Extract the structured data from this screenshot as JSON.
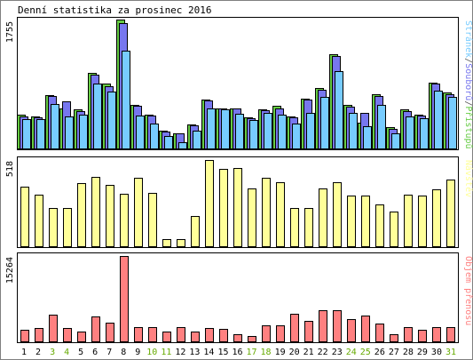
{
  "title": "Denní statistika za prosinec 2016",
  "colors": {
    "border": "#000000",
    "background": "#ffffff",
    "access": "#66cc44",
    "files": "#7777ee",
    "pages": "#77ccff",
    "visits": "#ffff99",
    "traffic": "#ff8080",
    "weekend_label": "#66aa00",
    "weekday_label": "#000000"
  },
  "chart_data": [
    {
      "type": "bar",
      "panel": "hits",
      "ymax_label": "1755",
      "ylim": [
        0,
        1755
      ],
      "side_label": [
        "Stránek",
        "/",
        "Souborů",
        "/",
        "Přístupů"
      ],
      "categories": [
        "1",
        "2",
        "3",
        "4",
        "5",
        "6",
        "7",
        "8",
        "9",
        "10",
        "11",
        "12",
        "13",
        "14",
        "15",
        "16",
        "17",
        "18",
        "19",
        "20",
        "21",
        "22",
        "23",
        "24",
        "25",
        "26",
        "27",
        "28",
        "29",
        "30",
        "31"
      ],
      "weekend_days": [
        "3",
        "4",
        "10",
        "11",
        "17",
        "18",
        "24",
        "25",
        "31"
      ],
      "series": [
        {
          "name": "Přístupů",
          "key": "access",
          "values": [
            460,
            440,
            730,
            550,
            530,
            1025,
            880,
            1755,
            590,
            460,
            240,
            210,
            330,
            670,
            550,
            550,
            420,
            530,
            580,
            430,
            680,
            820,
            1280,
            590,
            350,
            740,
            290,
            530,
            460,
            900,
            760
          ]
        },
        {
          "name": "Souborů",
          "key": "files",
          "values": [
            440,
            420,
            710,
            640,
            510,
            1000,
            850,
            1710,
            580,
            450,
            230,
            200,
            310,
            650,
            540,
            540,
            410,
            520,
            550,
            420,
            660,
            800,
            1260,
            570,
            480,
            720,
            270,
            510,
            450,
            880,
            740
          ]
        },
        {
          "name": "Stránek",
          "key": "pages",
          "values": [
            400,
            400,
            600,
            440,
            460,
            880,
            780,
            1330,
            450,
            340,
            170,
            80,
            240,
            540,
            530,
            470,
            390,
            490,
            460,
            340,
            490,
            700,
            1050,
            480,
            300,
            590,
            210,
            430,
            410,
            790,
            700
          ]
        }
      ]
    },
    {
      "type": "bar",
      "panel": "visits",
      "ymax_label": "518",
      "ylim": [
        0,
        518
      ],
      "side_label": [
        "Návštěv"
      ],
      "categories": [
        "1",
        "2",
        "3",
        "4",
        "5",
        "6",
        "7",
        "8",
        "9",
        "10",
        "11",
        "12",
        "13",
        "14",
        "15",
        "16",
        "17",
        "18",
        "19",
        "20",
        "21",
        "22",
        "23",
        "24",
        "25",
        "26",
        "27",
        "28",
        "29",
        "30",
        "31"
      ],
      "series": [
        {
          "name": "Návštěv",
          "key": "visits",
          "values": [
            360,
            312,
            228,
            228,
            378,
            418,
            366,
            316,
            412,
            322,
            45,
            45,
            180,
            518,
            466,
            468,
            346,
            412,
            386,
            228,
            228,
            346,
            386,
            306,
            306,
            252,
            208,
            312,
            306,
            340,
            400
          ]
        }
      ]
    },
    {
      "type": "bar",
      "panel": "traffic",
      "ymax_label": "15264",
      "ylim": [
        0,
        15264
      ],
      "side_label": [
        "Objem přenosu"
      ],
      "categories": [
        "1",
        "2",
        "3",
        "4",
        "5",
        "6",
        "7",
        "8",
        "9",
        "10",
        "11",
        "12",
        "13",
        "14",
        "15",
        "16",
        "17",
        "18",
        "19",
        "20",
        "21",
        "22",
        "23",
        "24",
        "25",
        "26",
        "27",
        "28",
        "29",
        "30",
        "31"
      ],
      "series": [
        {
          "name": "Objem přenosu",
          "key": "traffic",
          "values": [
            2000,
            2400,
            4800,
            2400,
            1700,
            4400,
            3300,
            15264,
            2500,
            2500,
            1700,
            2500,
            1800,
            2400,
            2200,
            1200,
            900,
            2800,
            2800,
            4900,
            3600,
            5500,
            5500,
            3900,
            4600,
            3200,
            1300,
            2500,
            2000,
            2600,
            2500
          ]
        }
      ]
    }
  ]
}
